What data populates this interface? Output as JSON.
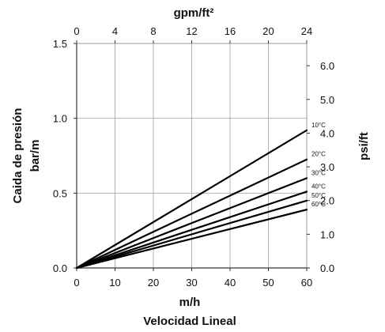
{
  "chart_data": {
    "type": "line",
    "x": [
      0,
      60
    ],
    "xlabel": "m/h",
    "xlabel_sub": "Velocidad Lineal",
    "xlim": [
      0,
      60
    ],
    "x_ticks": [
      0,
      10,
      20,
      30,
      40,
      50,
      60
    ],
    "ylabel_lines": [
      "Caida de presión",
      "bar/m"
    ],
    "ylim": [
      0,
      1.5
    ],
    "y_ticks": [
      "0.0",
      "0.5",
      "1.0",
      "1.5"
    ],
    "x2label": "gpm/ft²",
    "x2_ticks": [
      0,
      4,
      8,
      12,
      16,
      20,
      24
    ],
    "y2label": "psi/ft",
    "y2_ticks": [
      "0.0",
      "1.0",
      "2.0",
      "3.0",
      "4.0",
      "5.0",
      "6.0"
    ],
    "grid": true,
    "series": [
      {
        "name": "10°C",
        "values": [
          0,
          0.92
        ]
      },
      {
        "name": "20°C",
        "values": [
          0,
          0.725
        ]
      },
      {
        "name": "30°C",
        "values": [
          0,
          0.6
        ]
      },
      {
        "name": "40°C",
        "values": [
          0,
          0.51
        ]
      },
      {
        "name": "50°C",
        "values": [
          0,
          0.45
        ]
      },
      {
        "name": "60°C",
        "values": [
          0,
          0.39
        ]
      }
    ]
  }
}
